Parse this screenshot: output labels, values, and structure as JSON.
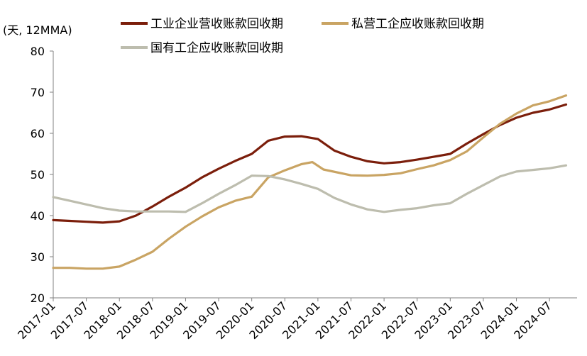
{
  "chart_data": {
    "type": "line",
    "unit_label": "(天, 12MMA)",
    "ylim": [
      20,
      80
    ],
    "y_ticks": [
      20,
      30,
      40,
      50,
      60,
      70,
      80
    ],
    "x_ticks": [
      "2017-01",
      "2017-07",
      "2018-01",
      "2018-07",
      "2019-01",
      "2019-07",
      "2020-01",
      "2020-07",
      "2021-01",
      "2021-07",
      "2022-01",
      "2022-07",
      "2023-01",
      "2023-07",
      "2024-01",
      "2024-07"
    ],
    "legend_position": "top",
    "grid": false,
    "series": [
      {
        "name": "工业企业营收账款回收期",
        "color": "#7B1E0B",
        "points": [
          [
            "2017-01",
            38.9
          ],
          [
            "2017-04",
            38.7
          ],
          [
            "2017-07",
            38.5
          ],
          [
            "2017-10",
            38.3
          ],
          [
            "2018-01",
            38.6
          ],
          [
            "2018-04",
            40.0
          ],
          [
            "2018-07",
            42.2
          ],
          [
            "2018-10",
            44.6
          ],
          [
            "2019-01",
            46.8
          ],
          [
            "2019-04",
            49.3
          ],
          [
            "2019-07",
            51.4
          ],
          [
            "2019-10",
            53.3
          ],
          [
            "2020-01",
            55.0
          ],
          [
            "2020-04",
            58.2
          ],
          [
            "2020-07",
            59.2
          ],
          [
            "2020-10",
            59.3
          ],
          [
            "2021-01",
            58.6
          ],
          [
            "2021-04",
            55.8
          ],
          [
            "2021-07",
            54.3
          ],
          [
            "2021-10",
            53.2
          ],
          [
            "2022-01",
            52.7
          ],
          [
            "2022-04",
            53.0
          ],
          [
            "2022-07",
            53.6
          ],
          [
            "2022-10",
            54.3
          ],
          [
            "2023-01",
            55.0
          ],
          [
            "2023-04",
            57.5
          ],
          [
            "2023-07",
            59.8
          ],
          [
            "2023-10",
            62.0
          ],
          [
            "2024-01",
            63.8
          ],
          [
            "2024-04",
            65.0
          ],
          [
            "2024-07",
            65.8
          ],
          [
            "2024-10",
            67.0
          ]
        ]
      },
      {
        "name": "私营工企应收账款回收期",
        "color": "#C9A463",
        "points": [
          [
            "2017-01",
            27.3
          ],
          [
            "2017-04",
            27.3
          ],
          [
            "2017-07",
            27.1
          ],
          [
            "2017-10",
            27.1
          ],
          [
            "2018-01",
            27.6
          ],
          [
            "2018-04",
            29.3
          ],
          [
            "2018-07",
            31.2
          ],
          [
            "2018-10",
            34.4
          ],
          [
            "2019-01",
            37.3
          ],
          [
            "2019-04",
            39.8
          ],
          [
            "2019-07",
            42.0
          ],
          [
            "2019-10",
            43.6
          ],
          [
            "2020-01",
            44.6
          ],
          [
            "2020-04",
            49.3
          ],
          [
            "2020-07",
            51.0
          ],
          [
            "2020-10",
            52.5
          ],
          [
            "2020-12",
            53.0
          ],
          [
            "2021-02",
            51.2
          ],
          [
            "2021-07",
            49.8
          ],
          [
            "2021-10",
            49.7
          ],
          [
            "2022-01",
            49.9
          ],
          [
            "2022-04",
            50.3
          ],
          [
            "2022-07",
            51.3
          ],
          [
            "2022-10",
            52.2
          ],
          [
            "2023-01",
            53.5
          ],
          [
            "2023-04",
            55.6
          ],
          [
            "2023-07",
            59.0
          ],
          [
            "2023-10",
            62.3
          ],
          [
            "2024-01",
            64.8
          ],
          [
            "2024-04",
            66.8
          ],
          [
            "2024-07",
            67.8
          ],
          [
            "2024-10",
            69.2
          ]
        ]
      },
      {
        "name": "国有工企应收账款回收期",
        "color": "#BDBDAE",
        "points": [
          [
            "2017-01",
            44.5
          ],
          [
            "2017-04",
            43.6
          ],
          [
            "2017-07",
            42.7
          ],
          [
            "2017-10",
            41.8
          ],
          [
            "2018-01",
            41.2
          ],
          [
            "2018-04",
            41.0
          ],
          [
            "2018-07",
            41.0
          ],
          [
            "2018-10",
            41.0
          ],
          [
            "2019-01",
            40.9
          ],
          [
            "2019-04",
            43.0
          ],
          [
            "2019-07",
            45.3
          ],
          [
            "2019-10",
            47.4
          ],
          [
            "2020-01",
            49.7
          ],
          [
            "2020-04",
            49.6
          ],
          [
            "2020-07",
            48.8
          ],
          [
            "2020-10",
            47.7
          ],
          [
            "2021-01",
            46.5
          ],
          [
            "2021-04",
            44.3
          ],
          [
            "2021-07",
            42.7
          ],
          [
            "2021-10",
            41.5
          ],
          [
            "2022-01",
            40.9
          ],
          [
            "2022-04",
            41.4
          ],
          [
            "2022-07",
            41.8
          ],
          [
            "2022-10",
            42.5
          ],
          [
            "2023-01",
            43.0
          ],
          [
            "2023-04",
            45.3
          ],
          [
            "2023-07",
            47.4
          ],
          [
            "2023-10",
            49.5
          ],
          [
            "2024-01",
            50.7
          ],
          [
            "2024-04",
            51.1
          ],
          [
            "2024-07",
            51.5
          ],
          [
            "2024-10",
            52.2
          ]
        ]
      }
    ]
  }
}
